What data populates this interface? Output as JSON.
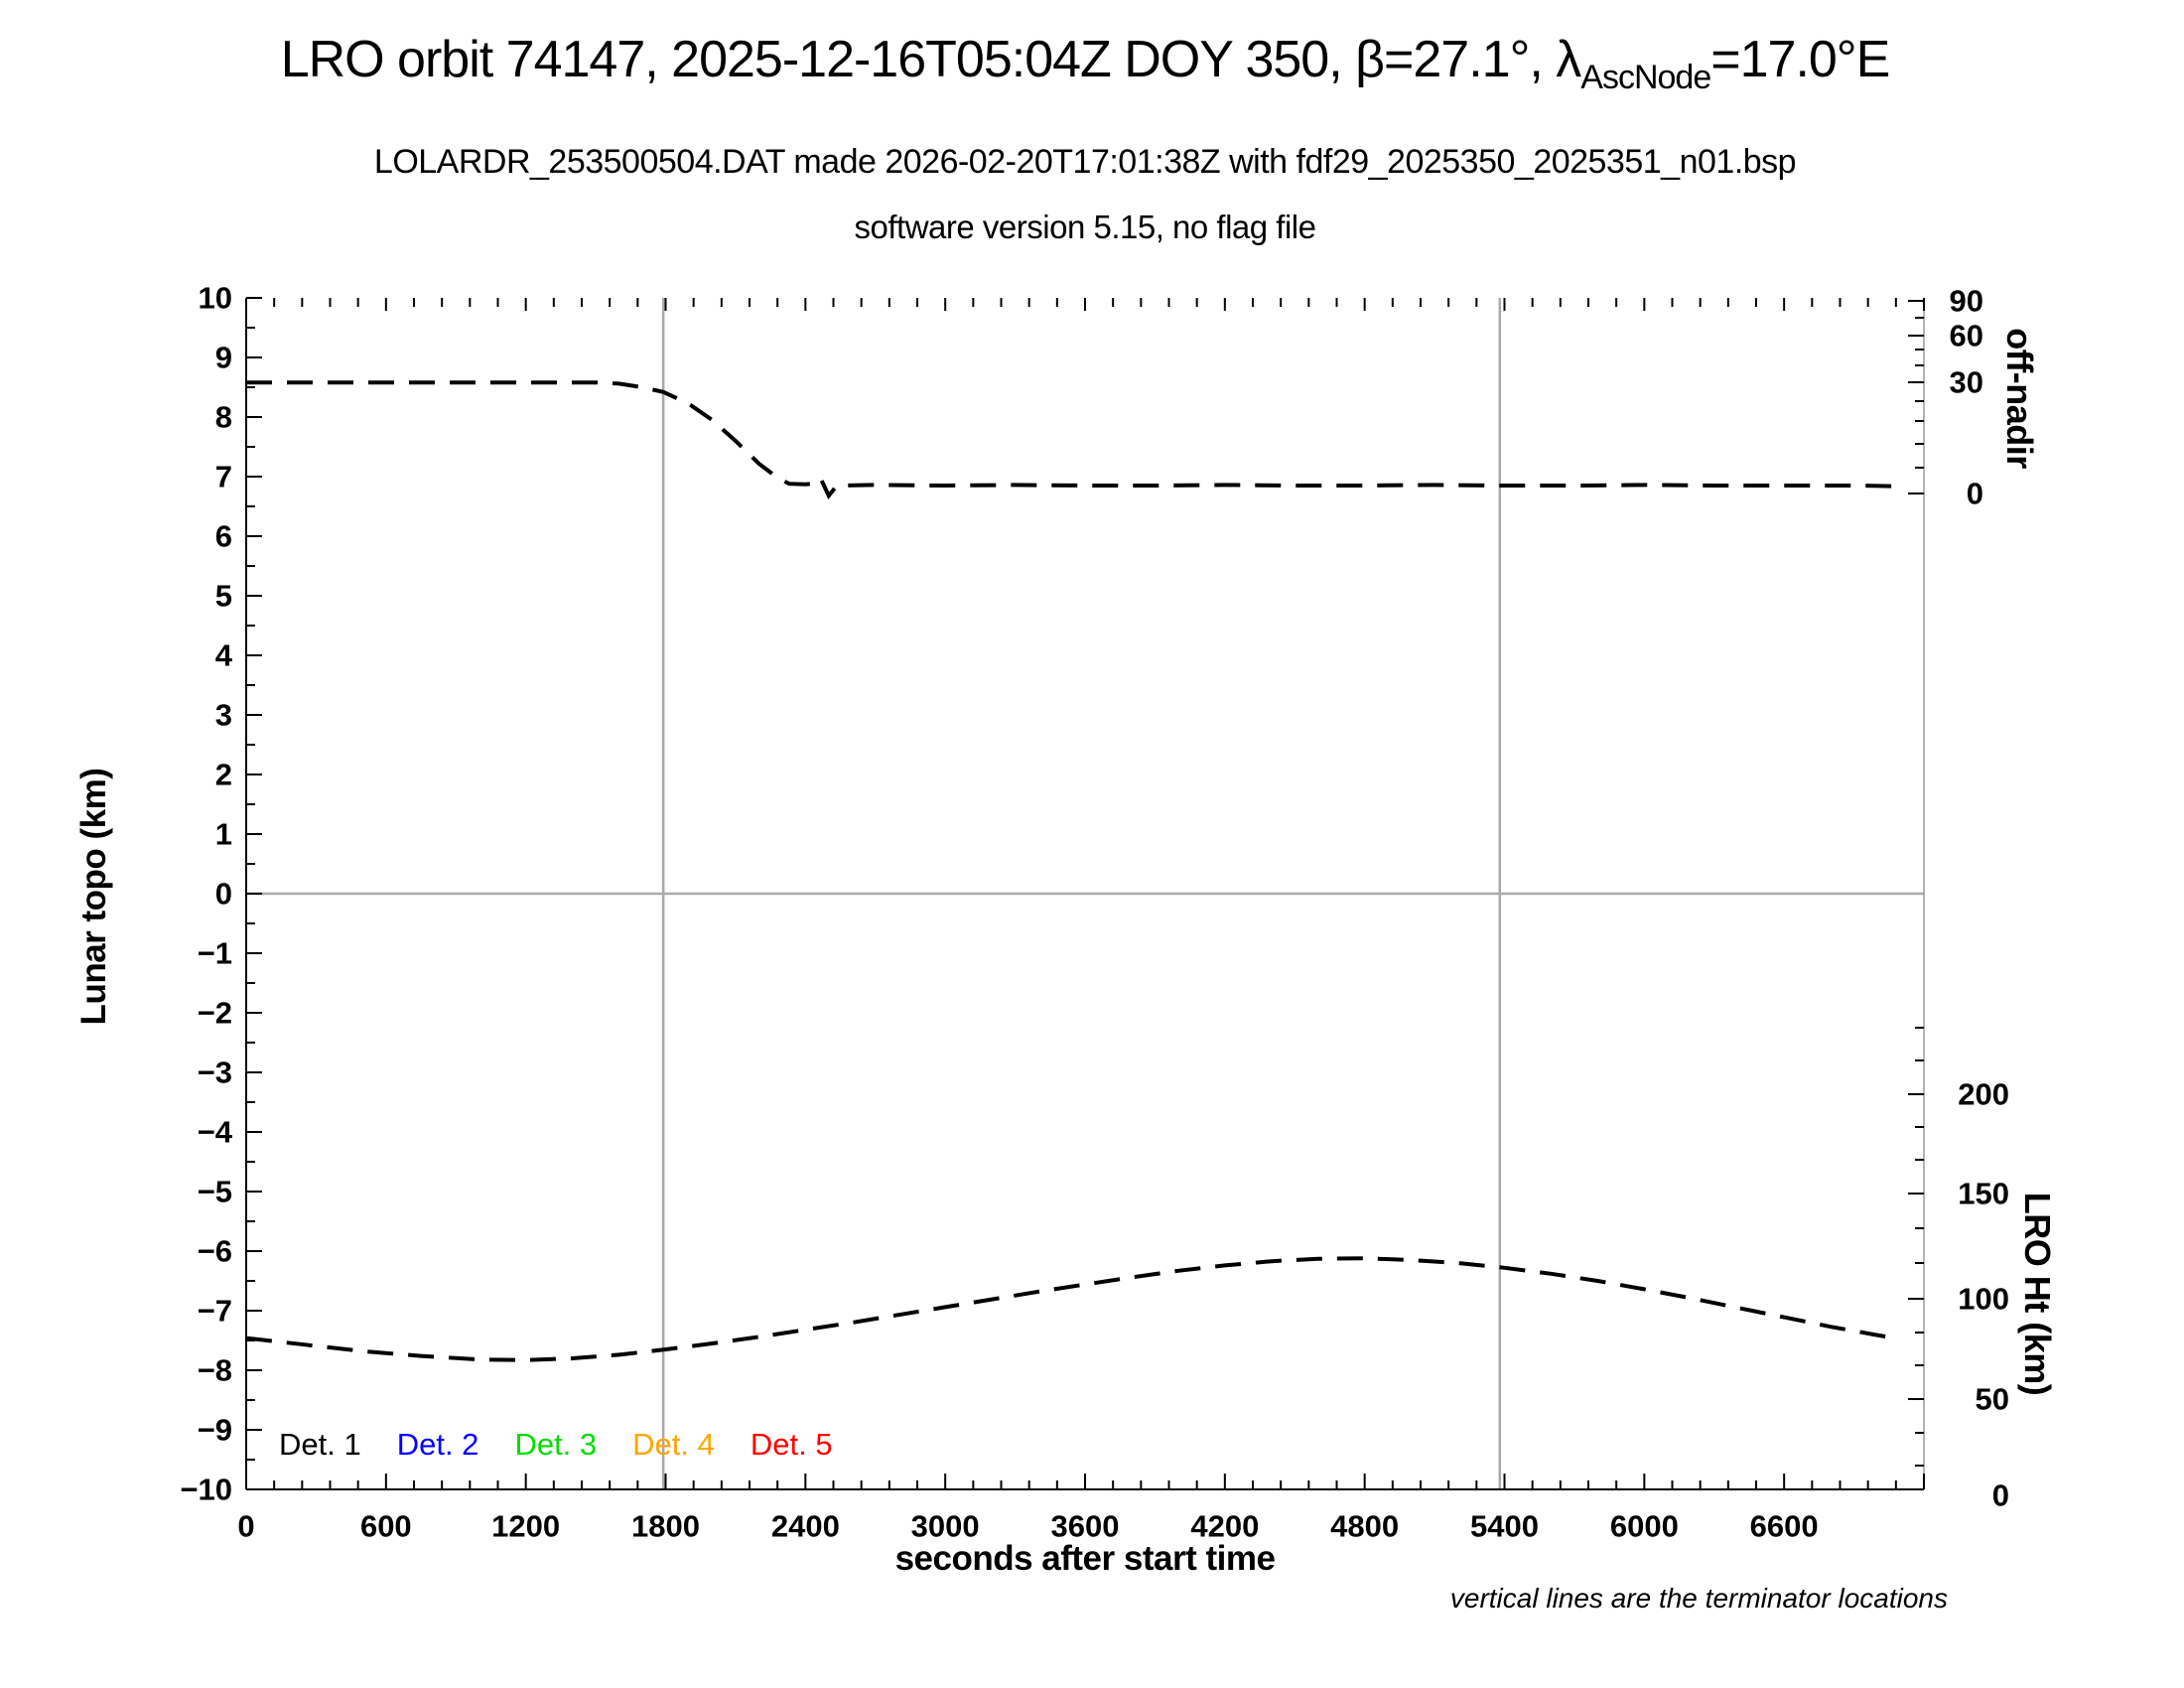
{
  "header": {
    "title_pre": "LRO orbit 74147, 2025-12-16T05:04Z DOY 350, β=27.1°, λ",
    "title_sub": "AscNode",
    "title_post": "=17.0°E",
    "line2": "LOLARDR_253500504.DAT made 2026-02-20T17:01:38Z with fdf29_2025350_2025351_n01.bsp",
    "line3": "software version 5.15, no flag file"
  },
  "note": "vertical lines are the terminator locations",
  "chart_data": {
    "type": "line",
    "title": "LRO orbit 74147, 2025-12-16T05:04Z DOY 350, β=27.1°, λAscNode=17.0°E",
    "grid": "terminator and zero reference lines only",
    "legend_position": "inside bottom-left",
    "x_axis": {
      "label": "seconds after start time",
      "range": [
        0,
        7200
      ],
      "major_tick_step": 600,
      "minor_tick_step": 120,
      "tick_labels": [
        "0",
        "600",
        "1200",
        "1800",
        "2400",
        "3000",
        "3600",
        "4200",
        "4800",
        "5400",
        "6000",
        "6600"
      ]
    },
    "y_axis_left": {
      "label": "Lunar topo (km)",
      "range": [
        -10,
        10
      ],
      "major_tick_step": 1,
      "minor_tick_step": 0.5,
      "tick_labels": [
        "10",
        "9",
        "8",
        "7",
        "6",
        "5",
        "4",
        "3",
        "2",
        "1",
        "0",
        "−1",
        "−2",
        "−3",
        "−4",
        "−5",
        "−6",
        "−7",
        "−8",
        "−9",
        "−10"
      ]
    },
    "y_axis_right_top": {
      "label": "off-nadir",
      "tick_labels": [
        "90",
        "60",
        "30",
        "0"
      ],
      "scale": "nonlinear degrees"
    },
    "y_axis_right_bottom": {
      "label": "LRO Ht (km)",
      "tick_labels": [
        "200",
        "150",
        "100",
        "50",
        "0"
      ]
    },
    "terminator_lines_sec": [
      1790,
      5380
    ],
    "reference_line_topo_km": 0,
    "series": [
      {
        "name": "off-nadir angle (plotted on Lunar topo scale)",
        "style": "dashed",
        "color": "#000000",
        "points": [
          [
            0,
            8.58
          ],
          [
            300,
            8.58
          ],
          [
            600,
            8.58
          ],
          [
            900,
            8.58
          ],
          [
            1200,
            8.58
          ],
          [
            1500,
            8.58
          ],
          [
            1600,
            8.56
          ],
          [
            1700,
            8.5
          ],
          [
            1790,
            8.42
          ],
          [
            1900,
            8.22
          ],
          [
            2000,
            7.95
          ],
          [
            2100,
            7.6
          ],
          [
            2200,
            7.22
          ],
          [
            2280,
            6.98
          ],
          [
            2330,
            6.88
          ],
          [
            2400,
            6.87
          ],
          [
            2430,
            6.88
          ],
          [
            2465,
            6.97
          ],
          [
            2500,
            6.68
          ],
          [
            2535,
            6.85
          ],
          [
            2700,
            6.86
          ],
          [
            3000,
            6.85
          ],
          [
            3300,
            6.86
          ],
          [
            3600,
            6.85
          ],
          [
            3900,
            6.85
          ],
          [
            4200,
            6.86
          ],
          [
            4500,
            6.85
          ],
          [
            4800,
            6.85
          ],
          [
            5100,
            6.86
          ],
          [
            5400,
            6.85
          ],
          [
            5700,
            6.85
          ],
          [
            6000,
            6.86
          ],
          [
            6300,
            6.85
          ],
          [
            6600,
            6.85
          ],
          [
            6900,
            6.85
          ],
          [
            7060,
            6.84
          ]
        ]
      },
      {
        "name": "LRO height (plotted on Lunar topo scale)",
        "style": "dashed",
        "color": "#000000",
        "points": [
          [
            0,
            -7.46
          ],
          [
            250,
            -7.57
          ],
          [
            500,
            -7.68
          ],
          [
            750,
            -7.76
          ],
          [
            1000,
            -7.82
          ],
          [
            1200,
            -7.83
          ],
          [
            1400,
            -7.8
          ],
          [
            1600,
            -7.74
          ],
          [
            1800,
            -7.65
          ],
          [
            2000,
            -7.55
          ],
          [
            2200,
            -7.44
          ],
          [
            2400,
            -7.32
          ],
          [
            2600,
            -7.2
          ],
          [
            2800,
            -7.07
          ],
          [
            3000,
            -6.94
          ],
          [
            3200,
            -6.81
          ],
          [
            3400,
            -6.68
          ],
          [
            3600,
            -6.56
          ],
          [
            3800,
            -6.44
          ],
          [
            4000,
            -6.33
          ],
          [
            4200,
            -6.24
          ],
          [
            4400,
            -6.17
          ],
          [
            4600,
            -6.13
          ],
          [
            4800,
            -6.12
          ],
          [
            5000,
            -6.15
          ],
          [
            5200,
            -6.2
          ],
          [
            5400,
            -6.28
          ],
          [
            5600,
            -6.38
          ],
          [
            5800,
            -6.5
          ],
          [
            6000,
            -6.64
          ],
          [
            6200,
            -6.79
          ],
          [
            6400,
            -6.95
          ],
          [
            6600,
            -7.11
          ],
          [
            6800,
            -7.27
          ],
          [
            7000,
            -7.41
          ],
          [
            7060,
            -7.45
          ]
        ]
      }
    ],
    "legend": [
      {
        "label": "Det. 1",
        "color": "#000000"
      },
      {
        "label": "Det. 2",
        "color": "#0000ff"
      },
      {
        "label": "Det. 3",
        "color": "#00dd00"
      },
      {
        "label": "Det. 4",
        "color": "#ffa500"
      },
      {
        "label": "Det. 5",
        "color": "#ff0000"
      }
    ],
    "annotations": [
      "vertical lines are the terminator locations"
    ],
    "colors": {
      "reference_lines": "#a9a9a9",
      "curves": "#000000"
    }
  }
}
